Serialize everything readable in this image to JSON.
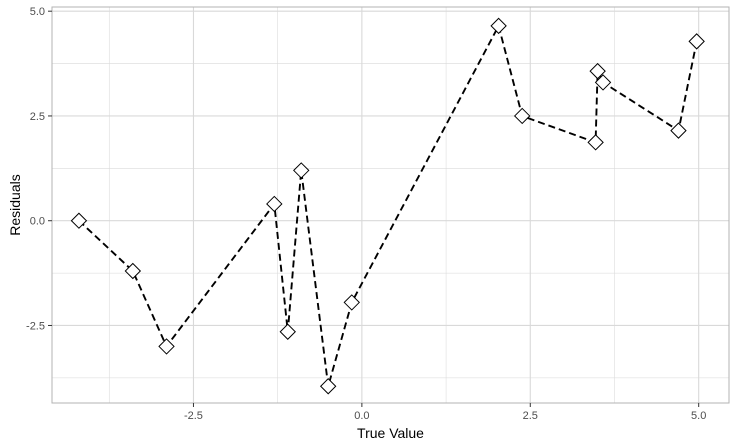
{
  "chart_data": {
    "type": "scatter",
    "title": "",
    "xlabel": "True Value",
    "ylabel": "Residuals",
    "xlim": [
      -4.6,
      5.45
    ],
    "ylim": [
      -4.35,
      5.1
    ],
    "x_ticks": [
      -2.5,
      0.0,
      2.5,
      5.0
    ],
    "x_tick_labels": [
      "-2.5",
      "0.0",
      "2.5",
      "5.0"
    ],
    "y_ticks": [
      -2.5,
      0.0,
      2.5,
      5.0
    ],
    "y_tick_labels": [
      "-2.5",
      "0.0",
      "2.5",
      "5.0"
    ],
    "grid": true,
    "legend": "none",
    "line_style": "dashed",
    "marker": "diamond-open",
    "colors": {
      "line": "#000000",
      "marker_fill": "#ffffff",
      "grid": "#d9d9d9",
      "panel_border": "#b3b3b3"
    },
    "series": [
      {
        "x": [
          -4.2,
          -3.4,
          -2.9,
          -1.3,
          -1.1,
          -0.9,
          -0.5,
          -0.15,
          2.03,
          2.38,
          3.47,
          3.5,
          3.58,
          4.7,
          4.97
        ],
        "y": [
          0.0,
          -1.2,
          -3.0,
          0.4,
          -2.65,
          1.2,
          -3.95,
          -1.95,
          4.65,
          2.5,
          1.87,
          3.57,
          3.3,
          2.15,
          4.28
        ]
      }
    ]
  }
}
